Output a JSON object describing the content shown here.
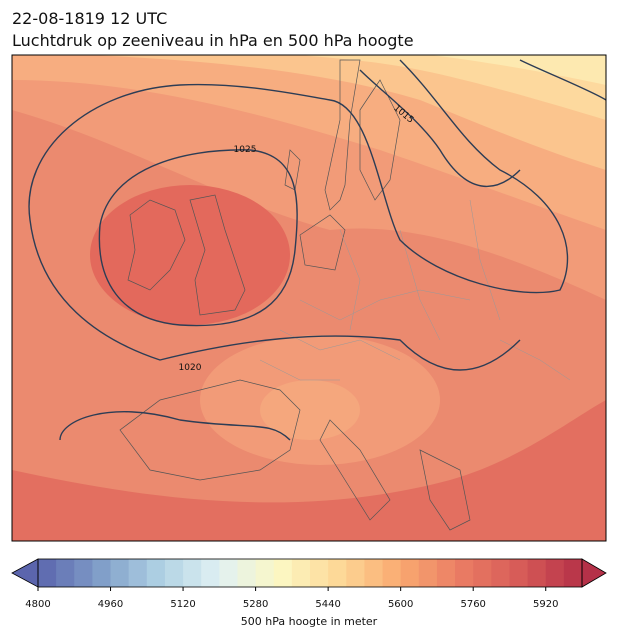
{
  "header": {
    "date": "22-08-1819 12 UTC",
    "title": "Luchtdruk op zeeniveau in hPa en 500 hPa hoogte"
  },
  "contours": [
    {
      "label": "1025"
    },
    {
      "label": "1015"
    },
    {
      "label": "1020"
    }
  ],
  "colorbar": {
    "lim": [
      4800,
      6000
    ],
    "step": 40,
    "ticks": [
      4800,
      4960,
      5120,
      5280,
      5440,
      5600,
      5760,
      5920
    ],
    "colors": [
      "#5b65ad",
      "#7f9cc8",
      "#aed1e3",
      "#e1f1f3",
      "#fcf8c3",
      "#fdd796",
      "#f9a970",
      "#ea7c64",
      "#d65a57",
      "#b53148"
    ],
    "label": "500 hPa hoogte in meter"
  }
}
